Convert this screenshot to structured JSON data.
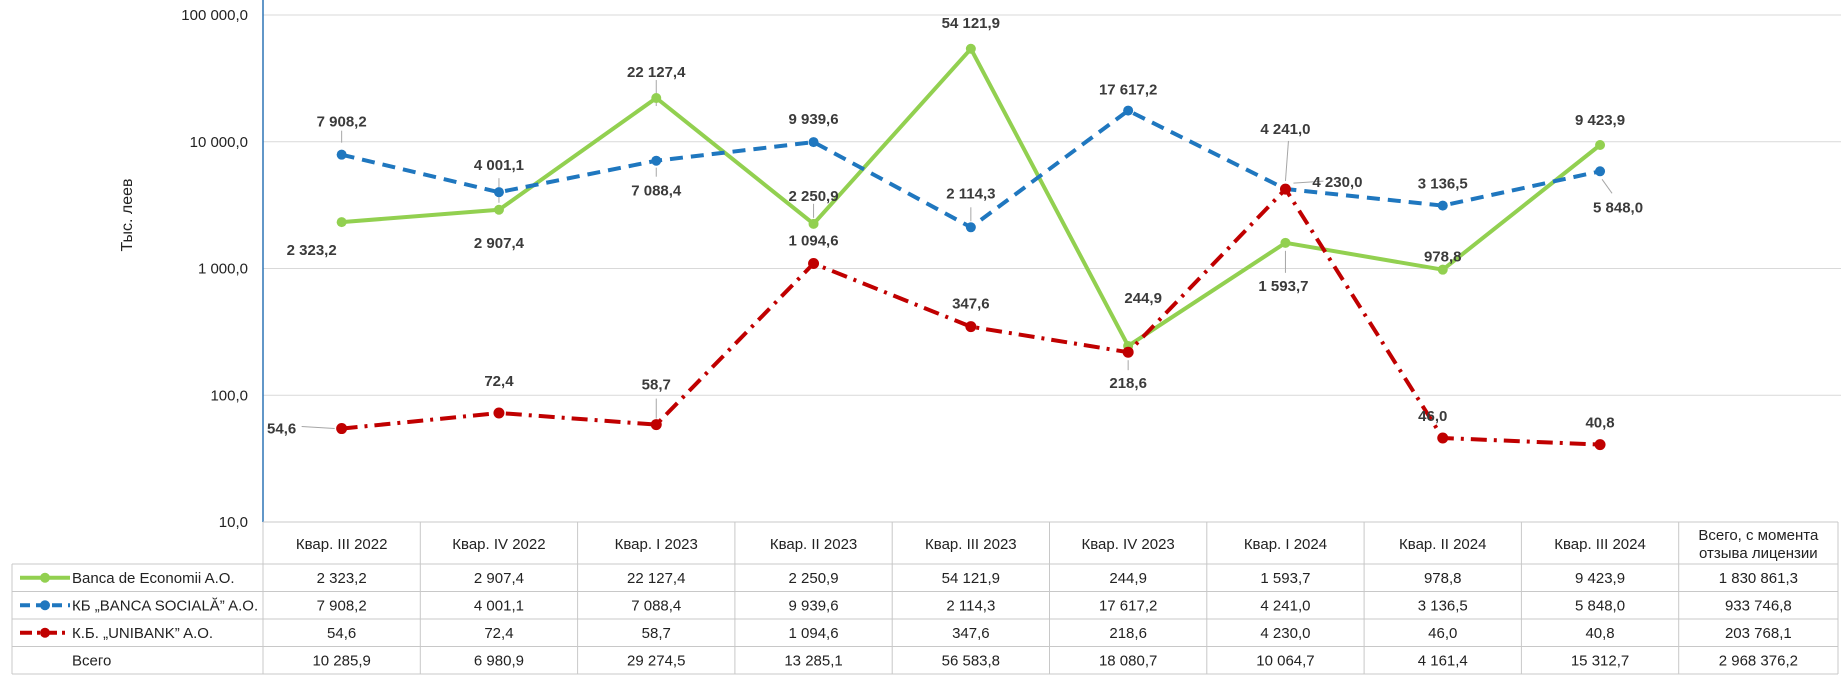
{
  "chart_data": {
    "type": "line",
    "title": "",
    "xlabel": "",
    "ylabel": "Тыс. леев",
    "y_scale": "log",
    "ylim": [
      10,
      100000
    ],
    "y_ticks": [
      10,
      100,
      1000,
      10000,
      100000
    ],
    "y_tick_labels": [
      "10,0",
      "100,0",
      "1 000,0",
      "10 000,0",
      "100 000,0"
    ],
    "grid": true,
    "legend": "table-left",
    "categories": [
      "Квар. III 2022",
      "Квар. IV 2022",
      "Квар. I 2023",
      "Квар. II 2023",
      "Квар. III 2023",
      "Квар. IV 2023",
      "Квар. I 2024",
      "Квар. II 2024",
      "Квар. III 2024"
    ],
    "series": [
      {
        "name": "Banca de Economii A.O.",
        "values": [
          2323.2,
          2907.4,
          22127.4,
          2250.9,
          54121.9,
          244.9,
          1593.7,
          978.8,
          9423.9
        ],
        "labels": [
          "2 323,2",
          "2 907,4",
          "22 127,4",
          "2 250,9",
          "54 121,9",
          "244,9",
          "1 593,7",
          "978,8",
          "9 423,9"
        ],
        "color": "#92D050",
        "line_style": "solid"
      },
      {
        "name": "КБ „BANCA SOCIALĂ” A.O.",
        "values": [
          7908.2,
          4001.1,
          7088.4,
          9939.6,
          2114.3,
          17617.2,
          4241.0,
          3136.5,
          5848.0
        ],
        "labels": [
          "7 908,2",
          "4 001,1",
          "7 088,4",
          "9 939,6",
          "2 114,3",
          "17 617,2",
          "4 241,0",
          "3 136,5",
          "5 848,0"
        ],
        "color": "#1F77BF",
        "line_style": "dashed"
      },
      {
        "name": "К.Б. „UNIBANK” A.O.",
        "values": [
          54.6,
          72.4,
          58.7,
          1094.6,
          347.6,
          218.6,
          4230.0,
          46.0,
          40.8
        ],
        "labels": [
          "54,6",
          "72,4",
          "58,7",
          "1 094,6",
          "347,6",
          "218,6",
          "4 230,0",
          "46,0",
          "40,8"
        ],
        "color": "#C00000",
        "line_style": "dash-dot"
      }
    ],
    "table": {
      "total_header": "Всего, с момента отзыва лицензии",
      "total_header_lines": [
        "Всего, с момента",
        "отзыва лицензии"
      ],
      "rows": [
        {
          "series_index": 0,
          "name": "Banca de Economii A.O.",
          "cells": [
            "2 323,2",
            "2 907,4",
            "22 127,4",
            "2 250,9",
            "54 121,9",
            "244,9",
            "1 593,7",
            "978,8",
            "9 423,9"
          ],
          "total": "1 830 861,3"
        },
        {
          "series_index": 1,
          "name": "КБ „BANCA SOCIALĂ” A.O.",
          "cells": [
            "7 908,2",
            "4 001,1",
            "7 088,4",
            "9 939,6",
            "2 114,3",
            "17 617,2",
            "4 241,0",
            "3 136,5",
            "5 848,0"
          ],
          "total": "933 746,8"
        },
        {
          "series_index": 2,
          "name": "К.Б. „UNIBANK” A.O.",
          "cells": [
            "54,6",
            "72,4",
            "58,7",
            "1 094,6",
            "347,6",
            "218,6",
            "4 230,0",
            "46,0",
            "40,8"
          ],
          "total": "203 768,1"
        },
        {
          "series_index": null,
          "name": "Всего",
          "cells": [
            "10 285,9",
            "6 980,9",
            "29 274,5",
            "13 285,1",
            "56 583,8",
            "18 080,7",
            "10 064,7",
            "4 161,4",
            "15 312,7"
          ],
          "total": "2 968 376,2"
        }
      ]
    }
  }
}
